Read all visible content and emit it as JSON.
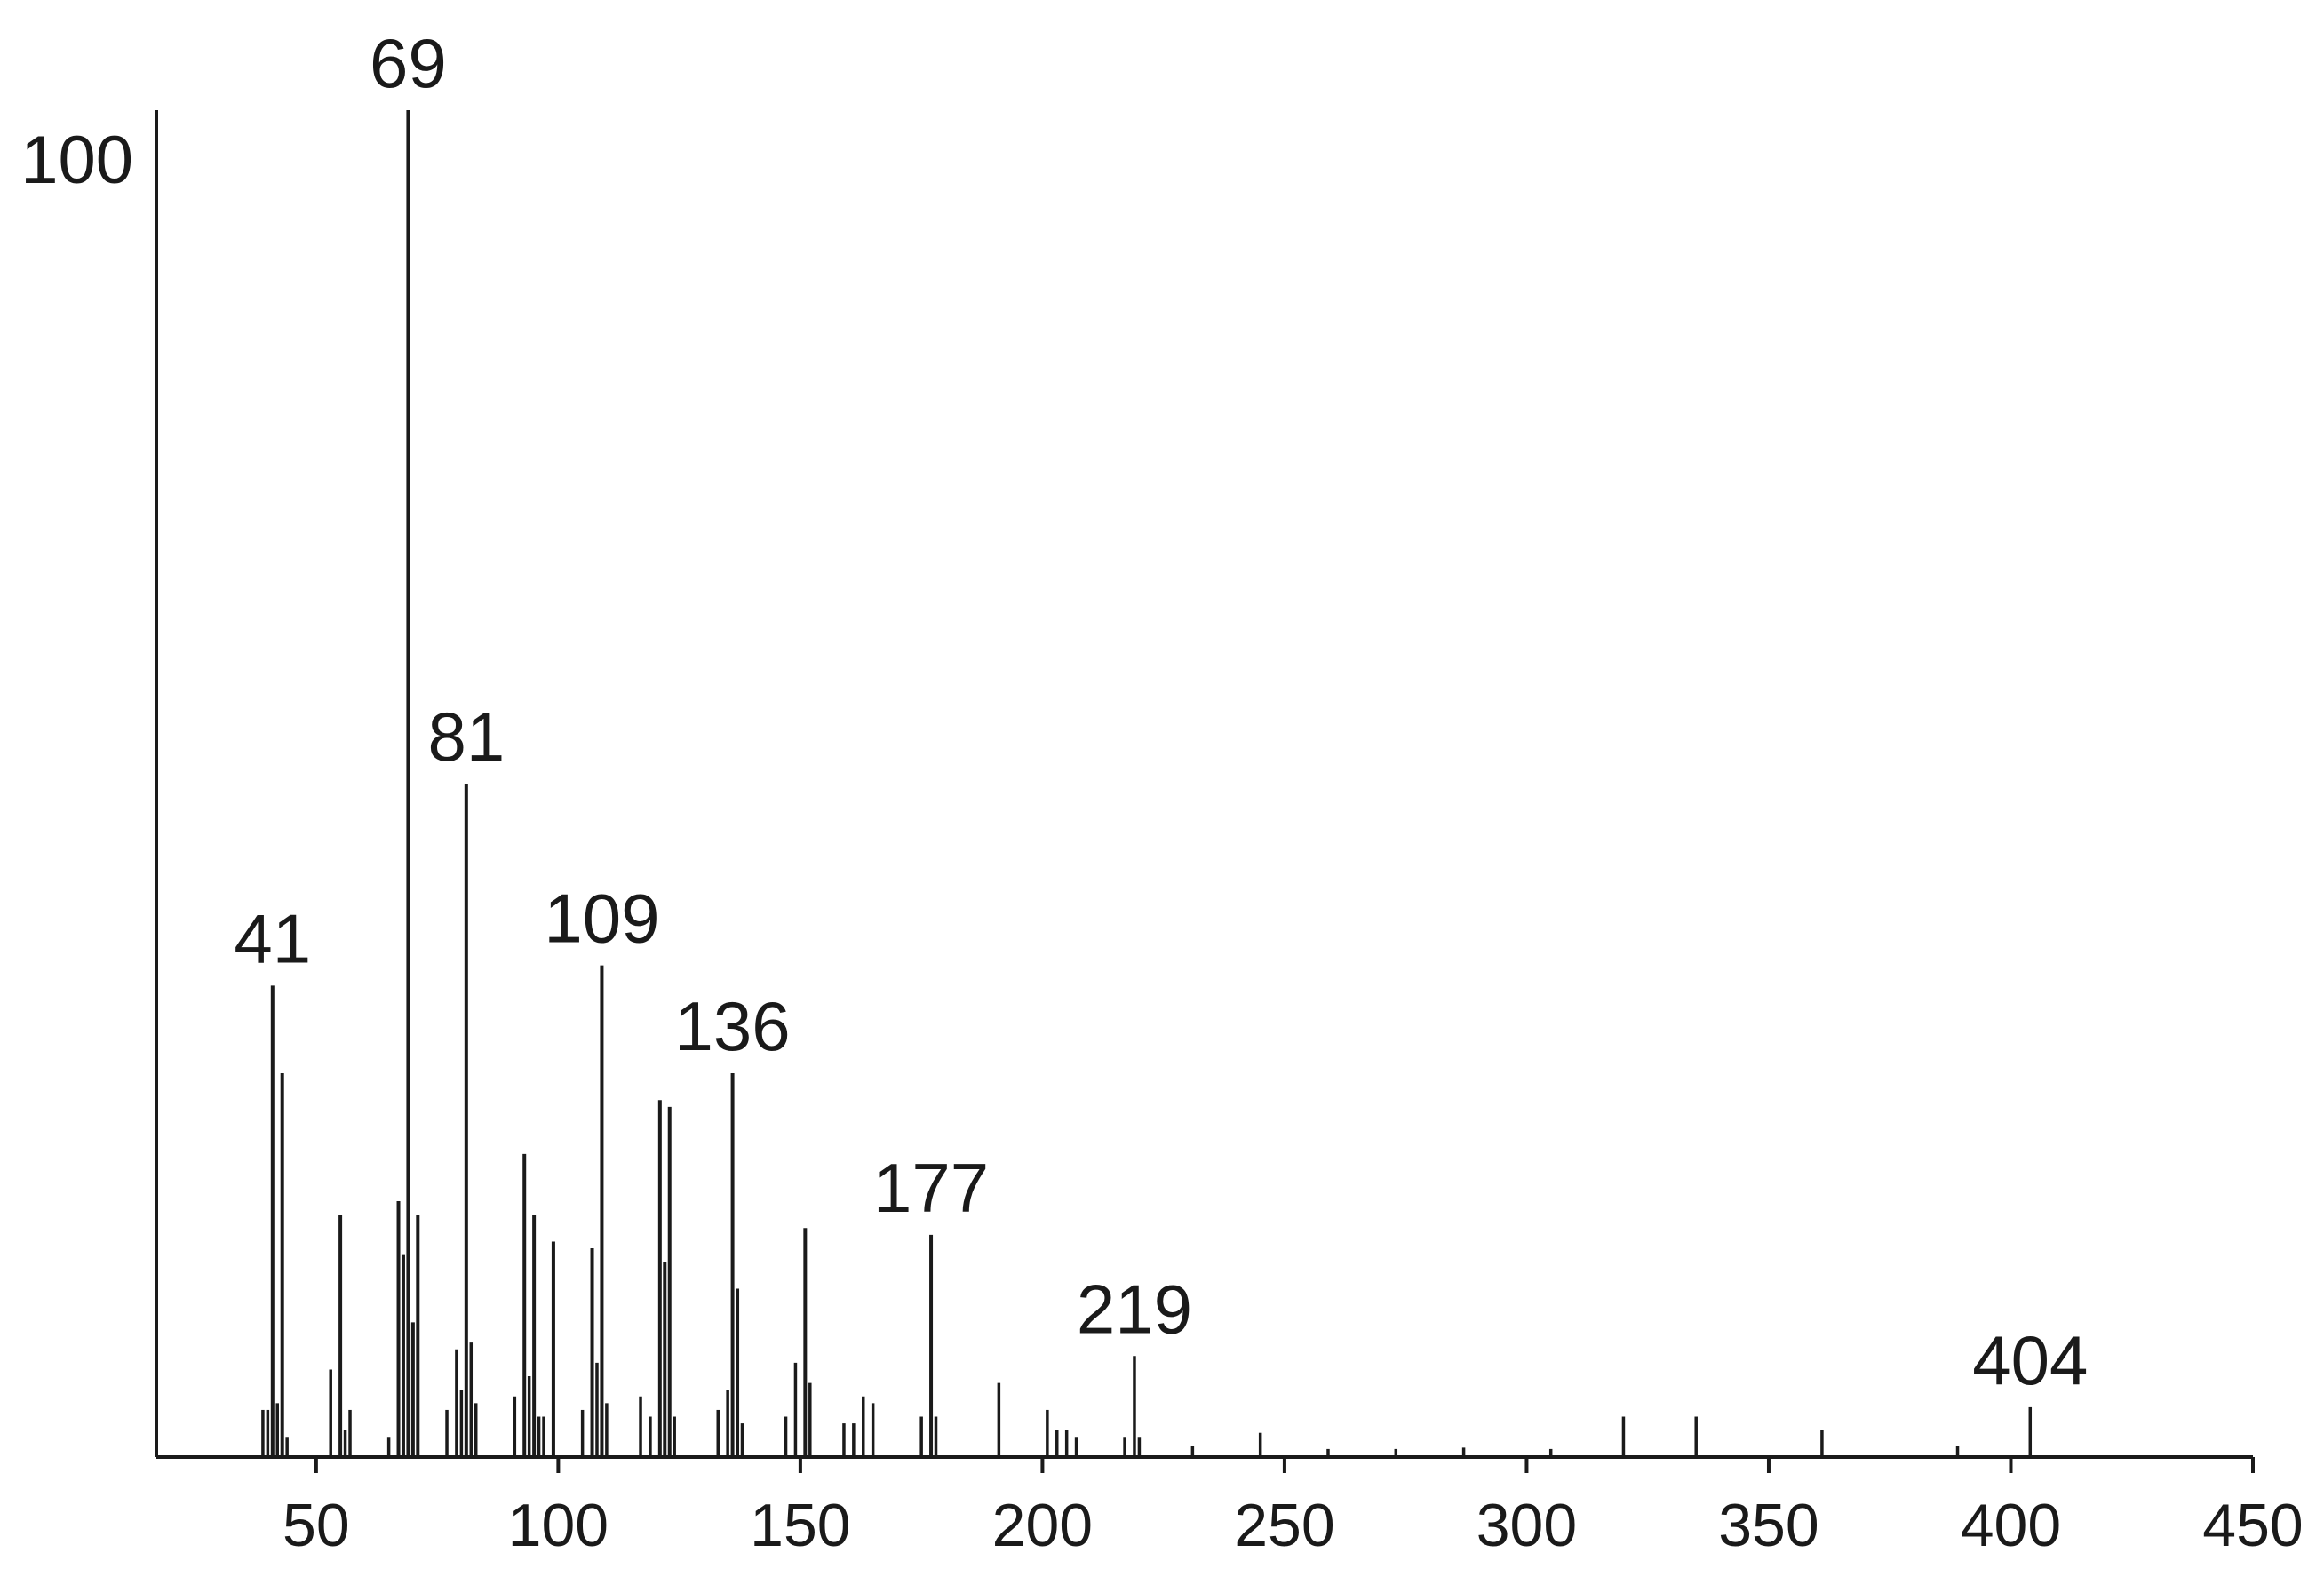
{
  "chart_data": {
    "type": "bar",
    "subtype": "mass-spectrum-stick",
    "title": "",
    "xlabel": "",
    "ylabel": "",
    "xlim": [
      17,
      450
    ],
    "ylim": [
      0,
      100
    ],
    "x_ticks": [
      50,
      100,
      150,
      200,
      250,
      300,
      350,
      400,
      450
    ],
    "y_tick_label": "100",
    "color": "#1a1a1a",
    "labeled_peaks": [
      {
        "x": 41,
        "y": 35,
        "label": "41"
      },
      {
        "x": 69,
        "y": 100,
        "label": "69"
      },
      {
        "x": 81,
        "y": 50,
        "label": "81"
      },
      {
        "x": 109,
        "y": 36.5,
        "label": "109"
      },
      {
        "x": 136,
        "y": 28.5,
        "label": "136"
      },
      {
        "x": 177,
        "y": 16.5,
        "label": "177"
      },
      {
        "x": 219,
        "y": 7.5,
        "label": "219"
      },
      {
        "x": 404,
        "y": 3.7,
        "label": "404"
      }
    ],
    "points": [
      {
        "x": 39,
        "y": 3.5
      },
      {
        "x": 40,
        "y": 3.5
      },
      {
        "x": 41,
        "y": 35
      },
      {
        "x": 42,
        "y": 4
      },
      {
        "x": 43,
        "y": 28.5
      },
      {
        "x": 44,
        "y": 1.5
      },
      {
        "x": 53,
        "y": 6.5
      },
      {
        "x": 55,
        "y": 18
      },
      {
        "x": 56,
        "y": 2
      },
      {
        "x": 57,
        "y": 3.5
      },
      {
        "x": 65,
        "y": 1.5
      },
      {
        "x": 67,
        "y": 19
      },
      {
        "x": 68,
        "y": 15
      },
      {
        "x": 69,
        "y": 100
      },
      {
        "x": 70,
        "y": 10
      },
      {
        "x": 71,
        "y": 18
      },
      {
        "x": 77,
        "y": 3.5
      },
      {
        "x": 79,
        "y": 8
      },
      {
        "x": 80,
        "y": 5
      },
      {
        "x": 81,
        "y": 50
      },
      {
        "x": 82,
        "y": 8.5
      },
      {
        "x": 83,
        "y": 4
      },
      {
        "x": 91,
        "y": 4.5
      },
      {
        "x": 93,
        "y": 22.5
      },
      {
        "x": 94,
        "y": 6
      },
      {
        "x": 95,
        "y": 18
      },
      {
        "x": 96,
        "y": 3
      },
      {
        "x": 97,
        "y": 3
      },
      {
        "x": 99,
        "y": 16
      },
      {
        "x": 105,
        "y": 3.5
      },
      {
        "x": 107,
        "y": 15.5
      },
      {
        "x": 108,
        "y": 7
      },
      {
        "x": 109,
        "y": 36.5
      },
      {
        "x": 110,
        "y": 4
      },
      {
        "x": 117,
        "y": 4.5
      },
      {
        "x": 119,
        "y": 3
      },
      {
        "x": 121,
        "y": 26.5
      },
      {
        "x": 122,
        "y": 14.5
      },
      {
        "x": 123,
        "y": 26
      },
      {
        "x": 124,
        "y": 3
      },
      {
        "x": 133,
        "y": 3.5
      },
      {
        "x": 135,
        "y": 5
      },
      {
        "x": 136,
        "y": 28.5
      },
      {
        "x": 137,
        "y": 12.5
      },
      {
        "x": 138,
        "y": 2.5
      },
      {
        "x": 147,
        "y": 3
      },
      {
        "x": 149,
        "y": 7
      },
      {
        "x": 151,
        "y": 17
      },
      {
        "x": 152,
        "y": 5.5
      },
      {
        "x": 159,
        "y": 2.5
      },
      {
        "x": 161,
        "y": 2.5
      },
      {
        "x": 163,
        "y": 4.5
      },
      {
        "x": 165,
        "y": 4
      },
      {
        "x": 175,
        "y": 3
      },
      {
        "x": 177,
        "y": 16.5
      },
      {
        "x": 178,
        "y": 3
      },
      {
        "x": 191,
        "y": 5.5
      },
      {
        "x": 201,
        "y": 3.5
      },
      {
        "x": 203,
        "y": 2
      },
      {
        "x": 205,
        "y": 2
      },
      {
        "x": 207,
        "y": 1.5
      },
      {
        "x": 217,
        "y": 1.5
      },
      {
        "x": 219,
        "y": 7.5
      },
      {
        "x": 220,
        "y": 1.5
      },
      {
        "x": 231,
        "y": 0.8
      },
      {
        "x": 245,
        "y": 1.8
      },
      {
        "x": 259,
        "y": 0.6
      },
      {
        "x": 273,
        "y": 0.6
      },
      {
        "x": 287,
        "y": 0.7
      },
      {
        "x": 305,
        "y": 0.6
      },
      {
        "x": 320,
        "y": 3
      },
      {
        "x": 335,
        "y": 3
      },
      {
        "x": 361,
        "y": 2
      },
      {
        "x": 389,
        "y": 0.8
      },
      {
        "x": 404,
        "y": 3.7
      }
    ]
  }
}
